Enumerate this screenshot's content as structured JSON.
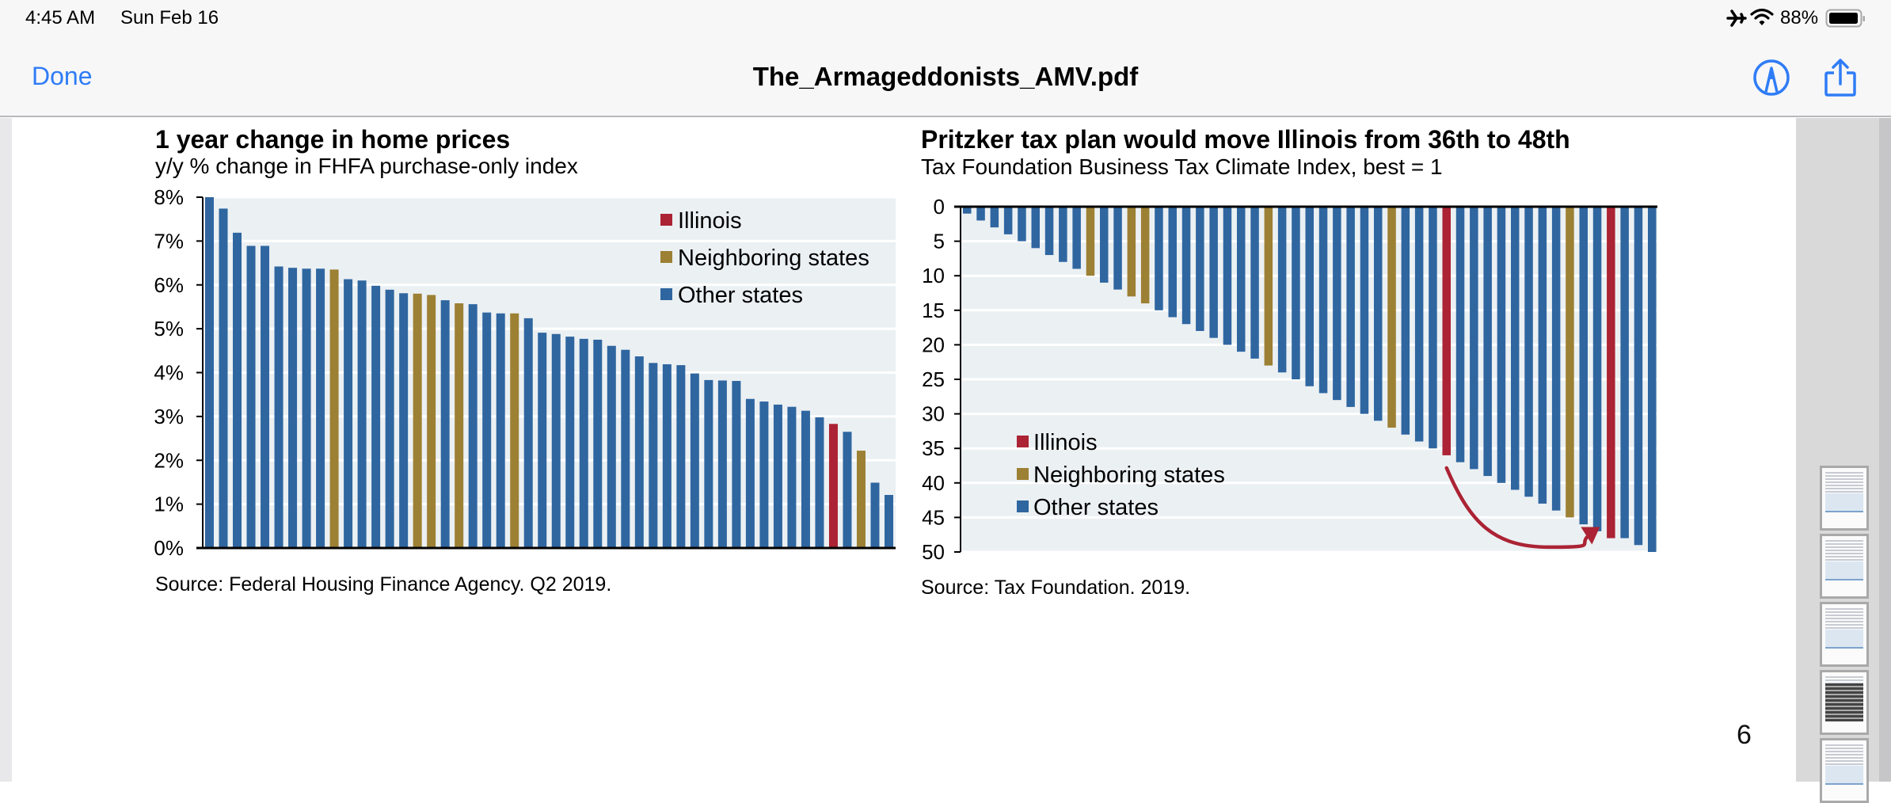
{
  "status_bar": {
    "time": "4:45 AM",
    "date": "Sun Feb 16",
    "battery_percent": "88%",
    "icons": [
      "airplane-mode-icon",
      "wifi-icon",
      "battery-icon"
    ]
  },
  "nav_bar": {
    "done_label": "Done",
    "document_title": "The_Armageddonists_AMV.pdf",
    "icons": [
      "markup-pen-icon",
      "share-icon"
    ]
  },
  "page": {
    "page_number": "6"
  },
  "colors": {
    "illinois": "#ab2334",
    "neighboring": "#9c8034",
    "other": "#2f66a0",
    "plot_background": "#ebf0f3",
    "accent_blue": "#2f7cf6"
  },
  "sidebar": {
    "thumbnail_count": 5
  },
  "chart_data": [
    {
      "type": "bar",
      "title": "1 year change in home prices",
      "subtitle": "y/y % change in FHFA purchase-only index",
      "source": "Source: Federal Housing Finance Agency. Q2 2019.",
      "xlabel": "",
      "ylabel": "",
      "ylim": [
        0,
        8
      ],
      "yticks": [
        0,
        1,
        2,
        3,
        4,
        5,
        6,
        7,
        8
      ],
      "ytick_labels": [
        "0%",
        "1%",
        "2%",
        "3%",
        "4%",
        "5%",
        "6%",
        "7%",
        "8%"
      ],
      "grid": true,
      "legend_position": "top-right",
      "legend": [
        {
          "key": "illinois",
          "label": "Illinois"
        },
        {
          "key": "neighboring",
          "label": "Neighboring states"
        },
        {
          "key": "other",
          "label": "Other states"
        }
      ],
      "values": [
        8.0,
        7.74,
        7.19,
        6.89,
        6.89,
        6.42,
        6.39,
        6.37,
        6.37,
        6.35,
        6.13,
        6.1,
        5.98,
        5.89,
        5.81,
        5.8,
        5.77,
        5.65,
        5.58,
        5.56,
        5.37,
        5.35,
        5.35,
        5.24,
        4.91,
        4.88,
        4.82,
        4.77,
        4.75,
        4.61,
        4.52,
        4.37,
        4.22,
        4.19,
        4.17,
        3.98,
        3.83,
        3.82,
        3.81,
        3.4,
        3.34,
        3.27,
        3.22,
        3.13,
        2.98,
        2.83,
        2.65,
        2.22,
        1.49,
        1.21
      ],
      "groups": [
        "other",
        "other",
        "other",
        "other",
        "other",
        "other",
        "other",
        "other",
        "other",
        "neighboring",
        "other",
        "other",
        "other",
        "other",
        "other",
        "neighboring",
        "neighboring",
        "other",
        "neighboring",
        "other",
        "other",
        "other",
        "neighboring",
        "other",
        "other",
        "other",
        "other",
        "other",
        "other",
        "other",
        "other",
        "other",
        "other",
        "other",
        "other",
        "other",
        "other",
        "other",
        "other",
        "other",
        "other",
        "other",
        "other",
        "other",
        "other",
        "illinois",
        "other",
        "neighboring",
        "other",
        "other"
      ]
    },
    {
      "type": "bar",
      "title": "Pritzker tax plan would move Illinois from 36th to 48th",
      "subtitle": "Tax Foundation Business Tax Climate Index, best  = 1",
      "source": "Source: Tax Foundation. 2019.",
      "xlabel": "",
      "ylabel": "",
      "ylim": [
        0,
        50
      ],
      "y_inverted": true,
      "yticks": [
        0,
        5,
        10,
        15,
        20,
        25,
        30,
        35,
        40,
        45,
        50
      ],
      "ytick_labels": [
        "0",
        "5",
        "10",
        "15",
        "20",
        "25",
        "30",
        "35",
        "40",
        "45",
        "50"
      ],
      "grid": true,
      "legend_position": "bottom-left",
      "legend": [
        {
          "key": "illinois",
          "label": "Illinois"
        },
        {
          "key": "neighboring",
          "label": "Neighboring states"
        },
        {
          "key": "other",
          "label": "Other states"
        }
      ],
      "values": [
        1,
        2,
        3,
        4,
        5,
        6,
        7,
        8,
        9,
        10,
        11,
        12,
        13,
        14,
        15,
        16,
        17,
        18,
        19,
        20,
        21,
        22,
        23,
        24,
        25,
        26,
        27,
        28,
        29,
        30,
        31,
        32,
        33,
        34,
        35,
        36,
        37,
        38,
        39,
        40,
        41,
        42,
        43,
        44,
        45,
        46,
        47,
        48,
        48,
        49,
        50
      ],
      "groups": [
        "other",
        "other",
        "other",
        "other",
        "other",
        "other",
        "other",
        "other",
        "other",
        "neighboring",
        "other",
        "other",
        "neighboring",
        "neighboring",
        "other",
        "other",
        "other",
        "other",
        "other",
        "other",
        "other",
        "other",
        "neighboring",
        "other",
        "other",
        "other",
        "other",
        "other",
        "other",
        "other",
        "other",
        "neighboring",
        "other",
        "other",
        "other",
        "illinois",
        "other",
        "other",
        "other",
        "other",
        "other",
        "other",
        "other",
        "other",
        "neighboring",
        "other",
        "other",
        "illinois",
        "other",
        "other",
        "other"
      ],
      "annotation": {
        "type": "arrow",
        "from_rank": 36,
        "to_rank": 48,
        "label": "Illinois moves from 36th to 48th"
      }
    }
  ]
}
